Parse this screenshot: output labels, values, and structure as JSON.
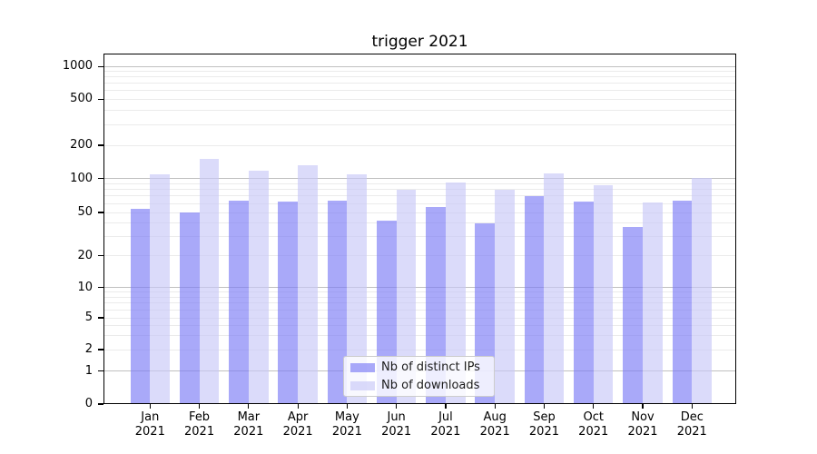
{
  "title": "trigger 2021",
  "chart_data": {
    "type": "bar",
    "title": "trigger 2021",
    "categories": [
      "Jan 2021",
      "Feb 2021",
      "Mar 2021",
      "Apr 2021",
      "May 2021",
      "Jun 2021",
      "Jul 2021",
      "Aug 2021",
      "Sep 2021",
      "Oct 2021",
      "Nov 2021",
      "Dec 2021"
    ],
    "months": [
      "Jan",
      "Feb",
      "Mar",
      "Apr",
      "May",
      "Jun",
      "Jul",
      "Aug",
      "Sep",
      "Oct",
      "Nov",
      "Dec"
    ],
    "year": "2021",
    "series": [
      {
        "name": "Nb of distinct IPs",
        "color": "rgba(123,123,246,0.65)",
        "values": [
          54,
          50,
          64,
          62,
          64,
          42,
          56,
          40,
          70,
          62,
          37,
          64
        ]
      },
      {
        "name": "Nb of downloads",
        "color": "rgba(199,199,247,0.65)",
        "values": [
          110,
          150,
          118,
          132,
          110,
          80,
          93,
          79,
          111,
          88,
          61,
          101
        ]
      }
    ],
    "yscale": "symlog",
    "y_ticks": [
      0,
      1,
      2,
      5,
      10,
      20,
      50,
      100,
      200,
      500,
      1000
    ],
    "y_minor_gridlines": [
      2,
      3,
      4,
      5,
      6,
      7,
      8,
      9,
      20,
      30,
      40,
      50,
      60,
      70,
      80,
      90,
      200,
      300,
      400,
      500,
      600,
      700,
      800,
      900
    ],
    "y_major_gridlines": [
      1,
      10,
      100,
      1000
    ],
    "ylim": [
      0,
      1100
    ],
    "xlabel": "",
    "ylabel": "",
    "grid": "on",
    "legend_position": "lower-center-inside"
  }
}
